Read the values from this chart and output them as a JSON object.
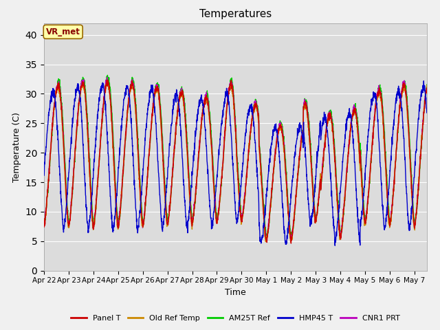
{
  "title": "Temperatures",
  "xlabel": "Time",
  "ylabel": "Temperature (C)",
  "ylim": [
    0,
    42
  ],
  "yticks": [
    0,
    5,
    10,
    15,
    20,
    25,
    30,
    35,
    40
  ],
  "fig_bg_color": "#f0f0f0",
  "plot_bg_color": "#dcdcdc",
  "legend_labels": [
    "Panel T",
    "Old Ref Temp",
    "AM25T Ref",
    "HMP45 T",
    "CNR1 PRT"
  ],
  "legend_colors": [
    "#cc0000",
    "#cc8800",
    "#00cc00",
    "#0000cc",
    "#bb00bb"
  ],
  "vr_met_label": "VR_met",
  "vr_met_box_color": "#ffffaa",
  "vr_met_box_edge": "#996600",
  "vr_met_text_color": "#880000",
  "line_width": 1.0,
  "date_labels": [
    "Apr 22",
    "Apr 23",
    "Apr 24",
    "Apr 25",
    "Apr 26",
    "Apr 27",
    "Apr 28",
    "Apr 29",
    "Apr 30",
    "May 1",
    "May 2",
    "May 3",
    "May 4",
    "May 5",
    "May 6",
    "May 7"
  ],
  "n_days": 15.5,
  "samples_per_day": 144
}
